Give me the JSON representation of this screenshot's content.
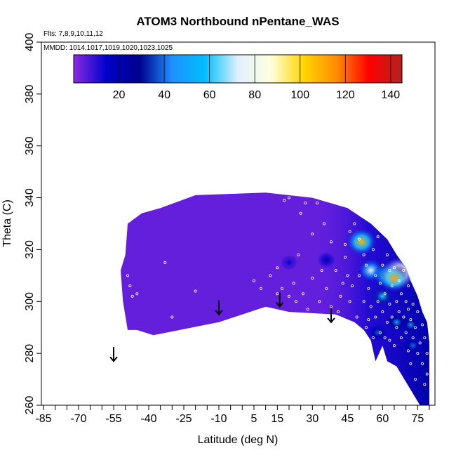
{
  "chart_data": {
    "type": "heatmap",
    "title": "ATOM3 Northbound nPentane_WAS",
    "flights_note": "Flts: 7,8,9,10,11,12",
    "dates_note": "MMDD: 1014,1017,1019,1020,1023,1025",
    "xlabel": "Latitude (deg N)",
    "ylabel": "Theta (C)",
    "xlim": [
      -85,
      80
    ],
    "ylim": [
      260,
      400
    ],
    "x_ticks": [
      {
        "value": -85,
        "label": "-85"
      },
      {
        "value": -70,
        "label": "-70"
      },
      {
        "value": -55,
        "label": "-55"
      },
      {
        "value": -40,
        "label": "-40"
      },
      {
        "value": -25,
        "label": "-25"
      },
      {
        "value": -10,
        "label": "-10"
      },
      {
        "value": 5,
        "label": "5"
      },
      {
        "value": 15,
        "label": "15"
      },
      {
        "value": 30,
        "label": "30"
      },
      {
        "value": 45,
        "label": "45"
      },
      {
        "value": 60,
        "label": "60"
      },
      {
        "value": 75,
        "label": "75"
      }
    ],
    "y_ticks": [
      {
        "value": 260,
        "label": "260"
      },
      {
        "value": 280,
        "label": "280"
      },
      {
        "value": 300,
        "label": "300"
      },
      {
        "value": 320,
        "label": "320"
      },
      {
        "value": 340,
        "label": "340"
      },
      {
        "value": 360,
        "label": "360"
      },
      {
        "value": 380,
        "label": "380"
      },
      {
        "value": 400,
        "label": "400"
      }
    ],
    "colorbar": {
      "range": [
        0,
        145
      ],
      "ticks": [
        {
          "value": 20,
          "label": "20"
        },
        {
          "value": 40,
          "label": "40"
        },
        {
          "value": 60,
          "label": "60"
        },
        {
          "value": 80,
          "label": "80"
        },
        {
          "value": 100,
          "label": "100"
        },
        {
          "value": 120,
          "label": "120"
        },
        {
          "value": 140,
          "label": "140"
        }
      ],
      "colors": [
        "#8a2be2",
        "#0000cd",
        "#00008b",
        "#1e90ff",
        "#00bfff",
        "#e0f0ff",
        "#ffffe0",
        "#ffd700",
        "#ff8c00",
        "#ff0000",
        "#b22222"
      ]
    },
    "boundary": [
      [
        -49,
        289
      ],
      [
        -45,
        289
      ],
      [
        -38,
        287
      ],
      [
        -10,
        292
      ],
      [
        10,
        298
      ],
      [
        20,
        296
      ],
      [
        40,
        295
      ],
      [
        48,
        292
      ],
      [
        52,
        289
      ],
      [
        55,
        285
      ],
      [
        57,
        277
      ],
      [
        60,
        283
      ],
      [
        62,
        277
      ],
      [
        66,
        275
      ],
      [
        72,
        266
      ],
      [
        76,
        260
      ],
      [
        80,
        260
      ],
      [
        80,
        284
      ],
      [
        79,
        292
      ],
      [
        77,
        296
      ],
      [
        75,
        302
      ],
      [
        72,
        308
      ],
      [
        70,
        313
      ],
      [
        66,
        318
      ],
      [
        62,
        324
      ],
      [
        55,
        330
      ],
      [
        45,
        336
      ],
      [
        30,
        340
      ],
      [
        10,
        342
      ],
      [
        -20,
        341
      ],
      [
        -35,
        336
      ],
      [
        -43,
        334
      ],
      [
        -49,
        330
      ],
      [
        -50,
        318
      ],
      [
        -52,
        312
      ],
      [
        -51,
        300
      ]
    ],
    "hotspots": [
      {
        "lat": 51,
        "theta": 323,
        "value": 108
      },
      {
        "lat": 55,
        "theta": 312,
        "value": 78
      },
      {
        "lat": 62,
        "theta": 310,
        "value": 95
      },
      {
        "lat": 67,
        "theta": 311,
        "value": 135
      },
      {
        "lat": 65,
        "theta": 309,
        "value": 112
      },
      {
        "lat": 60,
        "theta": 302,
        "value": 60
      },
      {
        "lat": 66,
        "theta": 292,
        "value": 50
      },
      {
        "lat": 72,
        "theta": 291,
        "value": 45
      },
      {
        "lat": 73,
        "theta": 283,
        "value": 40
      },
      {
        "lat": 58,
        "theta": 288,
        "value": 38
      },
      {
        "lat": 20,
        "theta": 315,
        "value": 16
      },
      {
        "lat": 36,
        "theta": 316,
        "value": 22
      }
    ],
    "samples": [
      [
        -49,
        310
      ],
      [
        -48,
        306
      ],
      [
        -47,
        302
      ],
      [
        -45,
        303
      ],
      [
        -30,
        294
      ],
      [
        -20,
        304
      ],
      [
        -33,
        315
      ],
      [
        5,
        308
      ],
      [
        8,
        305
      ],
      [
        12,
        310
      ],
      [
        15,
        303
      ],
      [
        15,
        313
      ],
      [
        17,
        305
      ],
      [
        20,
        302
      ],
      [
        23,
        300
      ],
      [
        18,
        339
      ],
      [
        20,
        340
      ],
      [
        25,
        334
      ],
      [
        27,
        338
      ],
      [
        30,
        326
      ],
      [
        32,
        338
      ],
      [
        35,
        330
      ],
      [
        38,
        323
      ],
      [
        38,
        298
      ],
      [
        40,
        312
      ],
      [
        42,
        302
      ],
      [
        44,
        317
      ],
      [
        46,
        300
      ],
      [
        47,
        306
      ],
      [
        49,
        294
      ],
      [
        50,
        310
      ],
      [
        50,
        324
      ],
      [
        51,
        333
      ],
      [
        52,
        300
      ],
      [
        53,
        314
      ],
      [
        53,
        290
      ],
      [
        54,
        305
      ],
      [
        55,
        298
      ],
      [
        56,
        320
      ],
      [
        56,
        286
      ],
      [
        57,
        310
      ],
      [
        57,
        294
      ],
      [
        58,
        300
      ],
      [
        58,
        325
      ],
      [
        59,
        288
      ],
      [
        59,
        307
      ],
      [
        60,
        296
      ],
      [
        60,
        314
      ],
      [
        61,
        303
      ],
      [
        62,
        292
      ],
      [
        62,
        318
      ],
      [
        63,
        285
      ],
      [
        63,
        299
      ],
      [
        64,
        306
      ],
      [
        64,
        294
      ],
      [
        65,
        313
      ],
      [
        65,
        283
      ],
      [
        66,
        300
      ],
      [
        66,
        290
      ],
      [
        67,
        308
      ],
      [
        67,
        296
      ],
      [
        68,
        286
      ],
      [
        68,
        303
      ],
      [
        69,
        294
      ],
      [
        70,
        300
      ],
      [
        70,
        288
      ],
      [
        71,
        306
      ],
      [
        71,
        281
      ],
      [
        72,
        293
      ],
      [
        72,
        276
      ],
      [
        73,
        299
      ],
      [
        73,
        286
      ],
      [
        74,
        290
      ],
      [
        74,
        270
      ],
      [
        75,
        296
      ],
      [
        75,
        280
      ],
      [
        76,
        284
      ],
      [
        77,
        276
      ],
      [
        77,
        291
      ],
      [
        78,
        286
      ],
      [
        78,
        268
      ],
      [
        79,
        280
      ],
      [
        79,
        272
      ],
      [
        48,
        330
      ],
      [
        45,
        310
      ],
      [
        43,
        307
      ],
      [
        41,
        296
      ],
      [
        36,
        305
      ],
      [
        33,
        300
      ],
      [
        28,
        297
      ],
      [
        26,
        303
      ],
      [
        22,
        307
      ],
      [
        24,
        318
      ],
      [
        30,
        309
      ],
      [
        34,
        312
      ],
      [
        44,
        322
      ],
      [
        46,
        327
      ],
      [
        52,
        318
      ],
      [
        54,
        293
      ],
      [
        61,
        286
      ],
      [
        63,
        312
      ],
      [
        69,
        312
      ],
      [
        71,
        297
      ]
    ],
    "arrows": [
      {
        "lat": -55,
        "theta": 277
      },
      {
        "lat": -10,
        "theta": 295
      },
      {
        "lat": 16,
        "theta": 298
      },
      {
        "lat": 38,
        "theta": 292
      }
    ]
  }
}
